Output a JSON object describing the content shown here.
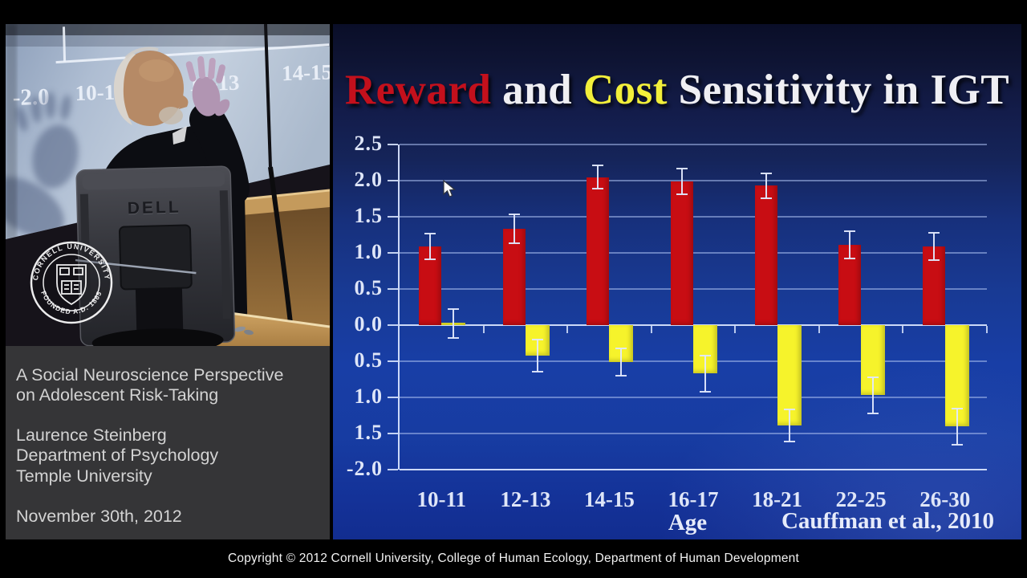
{
  "video_panel": {
    "screen": {
      "y_axis_label": "-2.0",
      "x_labels": [
        "10-11",
        "12-13",
        "14-15"
      ]
    },
    "monitor_brand": "DELL",
    "seal": {
      "top": "CORNELL UNIVERSITY",
      "bottom": "FOUNDED A.D. 1865"
    }
  },
  "info_panel": {
    "lines": [
      "A Social Neuroscience Perspective",
      "on Adolescent Risk-Taking",
      "Laurence Steinberg",
      "Department of Psychology",
      "Temple University",
      "November 30th, 2012"
    ]
  },
  "slide": {
    "title_segments": [
      {
        "text": "Reward",
        "color": "#c3101c"
      },
      {
        "text": " and ",
        "color": "#efeff3"
      },
      {
        "text": "Cost",
        "color": "#f2ef3a"
      },
      {
        "text": " Sensitivity in IGT",
        "color": "#efeff3"
      }
    ]
  },
  "chart_data": {
    "type": "bar",
    "title": "Reward and Cost Sensitivity in IGT",
    "categories": [
      "10-11",
      "12-13",
      "14-15",
      "16-17",
      "18-21",
      "22-25",
      "26-30"
    ],
    "series": [
      {
        "name": "Reward sensitivity",
        "color": "#c80d13",
        "values": [
          1.09,
          1.33,
          2.05,
          1.99,
          1.93,
          1.11,
          1.09
        ],
        "errors": [
          0.18,
          0.2,
          0.16,
          0.18,
          0.17,
          0.19,
          0.19
        ]
      },
      {
        "name": "Cost sensitivity",
        "color": "#f6f32b",
        "values": [
          0.02,
          -0.42,
          -0.51,
          -0.67,
          -1.39,
          -0.97,
          -1.4
        ],
        "errors": [
          0.2,
          0.22,
          0.19,
          0.25,
          0.22,
          0.25,
          0.25
        ]
      }
    ],
    "xlabel": "Age",
    "ylabel": "",
    "annotation": "Cauffman et al., 2010",
    "ylim": [
      -2.0,
      2.5
    ],
    "ytick_step": 0.5,
    "ytick_labels": [
      "2.5",
      "2.0",
      "1.5",
      "1.0",
      "0.5",
      "0.0",
      "0.5",
      "1.0",
      "1.5",
      "-2.0"
    ],
    "grid": true,
    "legend": "none",
    "error_bar_color": "#dfe6f8"
  },
  "footer": {
    "copyright": "Copyright © 2012 Cornell University, College of Human Ecology, Department of Human Development"
  }
}
